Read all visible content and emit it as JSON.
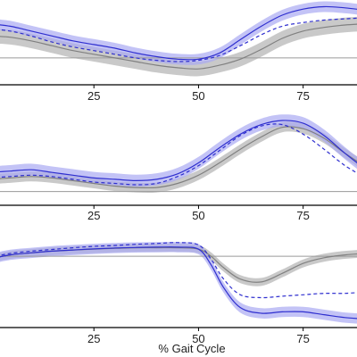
{
  "chart_data": {
    "type": "line",
    "xlabel": "% Gait Cycle",
    "xlim": [
      0,
      90
    ],
    "x_ticks": [
      25,
      50,
      75
    ],
    "colors": {
      "reference_mean": "#808080",
      "reference_band": "#bfbfbf",
      "series_mean": "#2f2fcf",
      "series_band": "#a9a9f2",
      "baseline": "#9a9a9a",
      "axis": "#000000"
    },
    "panels": [
      {
        "ylim": [
          -1.1,
          2.3
        ],
        "baseline": 0,
        "x": [
          0,
          5,
          10,
          15,
          20,
          25,
          30,
          35,
          40,
          45,
          50,
          55,
          60,
          65,
          70,
          75,
          80,
          85,
          90
        ],
        "reference": {
          "mean": [
            0.9,
            0.85,
            0.7,
            0.5,
            0.3,
            0.15,
            0,
            -0.15,
            -0.3,
            -0.4,
            -0.45,
            -0.3,
            -0.05,
            0.35,
            0.8,
            1.1,
            1.25,
            1.35,
            1.4
          ],
          "band": 0.3
        },
        "series": [
          {
            "mean": [
              1.4,
              1.3,
              1.1,
              0.9,
              0.7,
              0.55,
              0.4,
              0.2,
              0.05,
              -0.05,
              -0.05,
              0.2,
              0.75,
              1.3,
              1.75,
              2.0,
              2.1,
              2.05,
              1.95
            ],
            "band": 0.22,
            "line": "solid"
          },
          {
            "mean": [
              1.2,
              1.1,
              0.9,
              0.65,
              0.45,
              0.3,
              0.15,
              0,
              -0.1,
              -0.15,
              -0.1,
              0.1,
              0.5,
              0.95,
              1.3,
              1.45,
              1.55,
              1.6,
              1.65
            ],
            "band": 0,
            "line": "dashed"
          }
        ]
      },
      {
        "ylim": [
          -0.5,
          2.6
        ],
        "baseline": 0,
        "x": [
          0,
          5,
          10,
          15,
          20,
          25,
          30,
          35,
          40,
          45,
          50,
          55,
          60,
          65,
          70,
          75,
          80,
          85,
          90
        ],
        "reference": {
          "mean": [
            0.45,
            0.5,
            0.55,
            0.5,
            0.4,
            0.3,
            0.2,
            0.15,
            0.15,
            0.3,
            0.6,
            1.05,
            1.55,
            2.0,
            2.35,
            2.3,
            1.95,
            1.4,
            0.9
          ],
          "band": 0.18
        },
        "series": [
          {
            "mean": [
              0.7,
              0.75,
              0.8,
              0.7,
              0.6,
              0.5,
              0.45,
              0.4,
              0.45,
              0.65,
              1.05,
              1.6,
              2.1,
              2.45,
              2.6,
              2.5,
              2.05,
              1.4,
              0.8
            ],
            "band": 0.22,
            "line": "solid"
          },
          {
            "mean": [
              0.5,
              0.55,
              0.6,
              0.55,
              0.45,
              0.35,
              0.3,
              0.25,
              0.3,
              0.55,
              0.95,
              1.5,
              2.05,
              2.4,
              2.45,
              2.1,
              1.55,
              0.95,
              0.5
            ],
            "band": 0,
            "line": "dashed"
          }
        ]
      },
      {
        "ylim": [
          -2.5,
          0.6
        ],
        "baseline": 0,
        "x": [
          0,
          5,
          10,
          15,
          20,
          25,
          30,
          35,
          40,
          45,
          50,
          53,
          56,
          60,
          65,
          70,
          75,
          80,
          85,
          90
        ],
        "reference": {
          "mean": [
            -0.1,
            0.05,
            0.12,
            0.18,
            0.22,
            0.25,
            0.28,
            0.3,
            0.3,
            0.3,
            0.25,
            0.0,
            -0.4,
            -0.8,
            -0.9,
            -0.6,
            -0.25,
            -0.05,
            0.05,
            0.1
          ],
          "band": 0.14
        },
        "series": [
          {
            "mean": [
              -0.1,
              0.05,
              0.12,
              0.18,
              0.22,
              0.26,
              0.29,
              0.31,
              0.32,
              0.32,
              0.25,
              -0.3,
              -1.1,
              -1.8,
              -2.0,
              -1.95,
              -1.95,
              -2.05,
              -2.15,
              -2.2
            ],
            "band": 0.18,
            "line": "solid"
          },
          {
            "mean": [
              -0.05,
              0.1,
              0.18,
              0.24,
              0.3,
              0.35,
              0.38,
              0.42,
              0.45,
              0.48,
              0.4,
              -0.1,
              -0.8,
              -1.35,
              -1.45,
              -1.4,
              -1.35,
              -1.3,
              -1.3,
              -1.25
            ],
            "band": 0,
            "line": "dashed"
          }
        ]
      }
    ]
  }
}
